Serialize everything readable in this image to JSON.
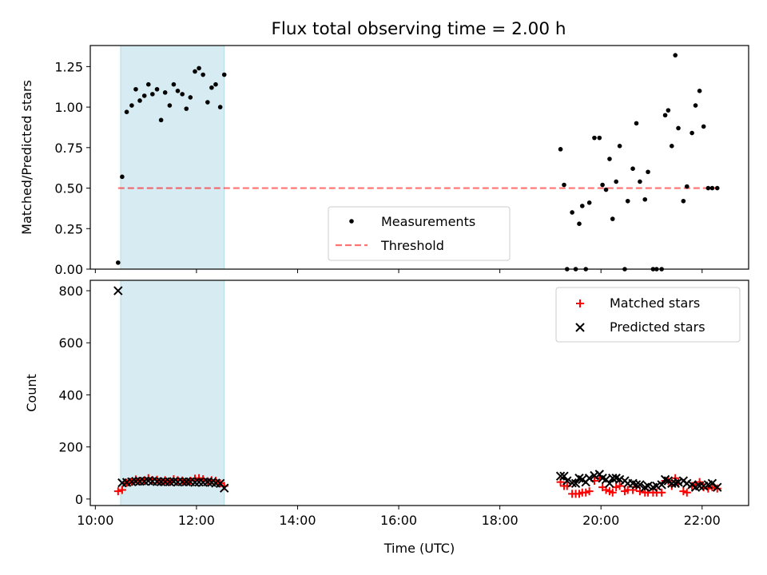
{
  "title": "Flux total observing time = 2.00 h",
  "colors": {
    "band": "#add8e6",
    "threshold": "#ff0000",
    "matched": "#ff0000",
    "measure": "#000000",
    "predicted": "#000000"
  },
  "chart_data": [
    {
      "type": "scatter",
      "ylabel": "Matched/Predicted stars",
      "xlim_hours": [
        9.9,
        22.92
      ],
      "ylim": [
        0,
        1.38
      ],
      "yticks": [
        0.0,
        0.25,
        0.5,
        0.75,
        1.0,
        1.25
      ],
      "ytick_labels": [
        "0.00",
        "0.25",
        "0.50",
        "0.75",
        "1.00",
        "1.25"
      ],
      "xticks_hours": [
        10,
        12,
        14,
        16,
        18,
        20,
        22
      ],
      "highlight_span_hours": [
        10.5,
        12.55
      ],
      "legend_position": "lower-center",
      "legend": [
        "Measurements",
        "Threshold"
      ],
      "threshold": {
        "value": 0.5,
        "x_hours": [
          10.45,
          22.3
        ]
      },
      "series": [
        {
          "name": "Measurements",
          "x_hours": [
            10.45,
            10.53,
            10.62,
            10.72,
            10.8,
            10.88,
            10.97,
            11.05,
            11.13,
            11.22,
            11.3,
            11.38,
            11.47,
            11.55,
            11.63,
            11.72,
            11.8,
            11.88,
            11.97,
            12.05,
            12.13,
            12.22,
            12.3,
            12.38,
            12.47,
            12.55,
            19.2,
            19.27,
            19.33,
            19.43,
            19.5,
            19.57,
            19.63,
            19.7,
            19.77,
            19.87,
            19.97,
            20.03,
            20.1,
            20.17,
            20.23,
            20.3,
            20.37,
            20.47,
            20.53,
            20.63,
            20.7,
            20.77,
            20.87,
            20.93,
            21.03,
            21.1,
            21.2,
            21.27,
            21.33,
            21.4,
            21.47,
            21.53,
            21.63,
            21.7,
            21.8,
            21.87,
            21.95,
            22.03,
            22.12,
            22.2,
            22.3
          ],
          "y": [
            0.04,
            0.57,
            0.97,
            1.01,
            1.11,
            1.04,
            1.07,
            1.14,
            1.08,
            1.11,
            0.92,
            1.09,
            1.01,
            1.14,
            1.1,
            1.08,
            0.99,
            1.06,
            1.22,
            1.24,
            1.2,
            1.03,
            1.12,
            1.14,
            1.0,
            1.2,
            0.74,
            0.52,
            0.0,
            0.35,
            0.0,
            0.28,
            0.39,
            0.0,
            0.41,
            0.81,
            0.81,
            0.52,
            0.49,
            0.68,
            0.31,
            0.54,
            0.76,
            0.0,
            0.42,
            0.62,
            0.9,
            0.54,
            0.43,
            0.6,
            0.0,
            0.0,
            0.0,
            0.95,
            0.98,
            0.76,
            1.32,
            0.87,
            0.42,
            0.51,
            0.84,
            1.01,
            1.1,
            0.88,
            0.5,
            0.5,
            0.5
          ]
        }
      ]
    },
    {
      "type": "scatter",
      "xlabel": "Time (UTC)",
      "ylabel": "Count",
      "xlim_hours": [
        9.9,
        22.92
      ],
      "ylim": [
        -25,
        840
      ],
      "yticks": [
        0,
        200,
        400,
        600,
        800
      ],
      "ytick_labels": [
        "0",
        "200",
        "400",
        "600",
        "800"
      ],
      "xticks_hours": [
        10,
        12,
        14,
        16,
        18,
        20,
        22
      ],
      "xtick_labels": [
        "10:00",
        "12:00",
        "14:00",
        "16:00",
        "18:00",
        "20:00",
        "22:00"
      ],
      "highlight_span_hours": [
        10.5,
        12.55
      ],
      "legend_position": "upper-right",
      "legend": [
        "Matched stars",
        "Predicted stars"
      ],
      "series": [
        {
          "name": "Matched stars",
          "x_hours": [
            10.45,
            10.53,
            10.62,
            10.72,
            10.8,
            10.88,
            10.97,
            11.05,
            11.13,
            11.22,
            11.3,
            11.38,
            11.47,
            11.55,
            11.63,
            11.72,
            11.8,
            11.88,
            11.97,
            12.05,
            12.13,
            12.22,
            12.3,
            12.38,
            12.47,
            12.55,
            19.2,
            19.27,
            19.33,
            19.43,
            19.5,
            19.57,
            19.63,
            19.7,
            19.77,
            19.87,
            19.97,
            20.03,
            20.1,
            20.17,
            20.23,
            20.3,
            20.37,
            20.47,
            20.53,
            20.63,
            20.7,
            20.77,
            20.87,
            20.93,
            21.03,
            21.1,
            21.2,
            21.27,
            21.33,
            21.4,
            21.47,
            21.53,
            21.63,
            21.7,
            21.8,
            21.87,
            21.95,
            22.03,
            22.12,
            22.2,
            22.3
          ],
          "y": [
            30,
            35,
            62,
            66,
            75,
            70,
            72,
            80,
            73,
            74,
            68,
            72,
            66,
            76,
            72,
            71,
            65,
            70,
            78,
            80,
            76,
            68,
            72,
            70,
            60,
            50,
            65,
            50,
            50,
            20,
            20,
            20,
            25,
            25,
            30,
            70,
            80,
            45,
            35,
            30,
            25,
            45,
            50,
            30,
            35,
            35,
            45,
            30,
            25,
            25,
            25,
            25,
            25,
            70,
            70,
            50,
            80,
            60,
            30,
            25,
            50,
            55,
            65,
            45,
            40,
            45,
            40
          ]
        },
        {
          "name": "Predicted stars",
          "x_hours": [
            10.45,
            10.53,
            10.62,
            10.72,
            10.8,
            10.88,
            10.97,
            11.05,
            11.13,
            11.22,
            11.3,
            11.38,
            11.47,
            11.55,
            11.63,
            11.72,
            11.8,
            11.88,
            11.97,
            12.05,
            12.13,
            12.22,
            12.3,
            12.38,
            12.47,
            12.55,
            19.2,
            19.27,
            19.33,
            19.43,
            19.5,
            19.57,
            19.63,
            19.7,
            19.77,
            19.87,
            19.97,
            20.03,
            20.1,
            20.17,
            20.23,
            20.3,
            20.37,
            20.47,
            20.53,
            20.63,
            20.7,
            20.77,
            20.87,
            20.93,
            21.03,
            21.1,
            21.2,
            21.27,
            21.33,
            21.4,
            21.47,
            21.53,
            21.63,
            21.7,
            21.8,
            21.87,
            21.95,
            22.03,
            22.12,
            22.2,
            22.3
          ],
          "y": [
            800,
            62,
            64,
            66,
            68,
            68,
            68,
            70,
            68,
            67,
            66,
            66,
            66,
            67,
            65,
            66,
            66,
            66,
            64,
            65,
            64,
            66,
            64,
            61,
            60,
            42,
            88,
            88,
            70,
            62,
            60,
            80,
            75,
            65,
            80,
            90,
            95,
            80,
            75,
            60,
            80,
            80,
            75,
            70,
            60,
            60,
            55,
            55,
            45,
            50,
            45,
            50,
            55,
            75,
            70,
            60,
            60,
            65,
            70,
            60,
            55,
            45,
            50,
            50,
            55,
            60,
            45
          ]
        }
      ]
    }
  ]
}
